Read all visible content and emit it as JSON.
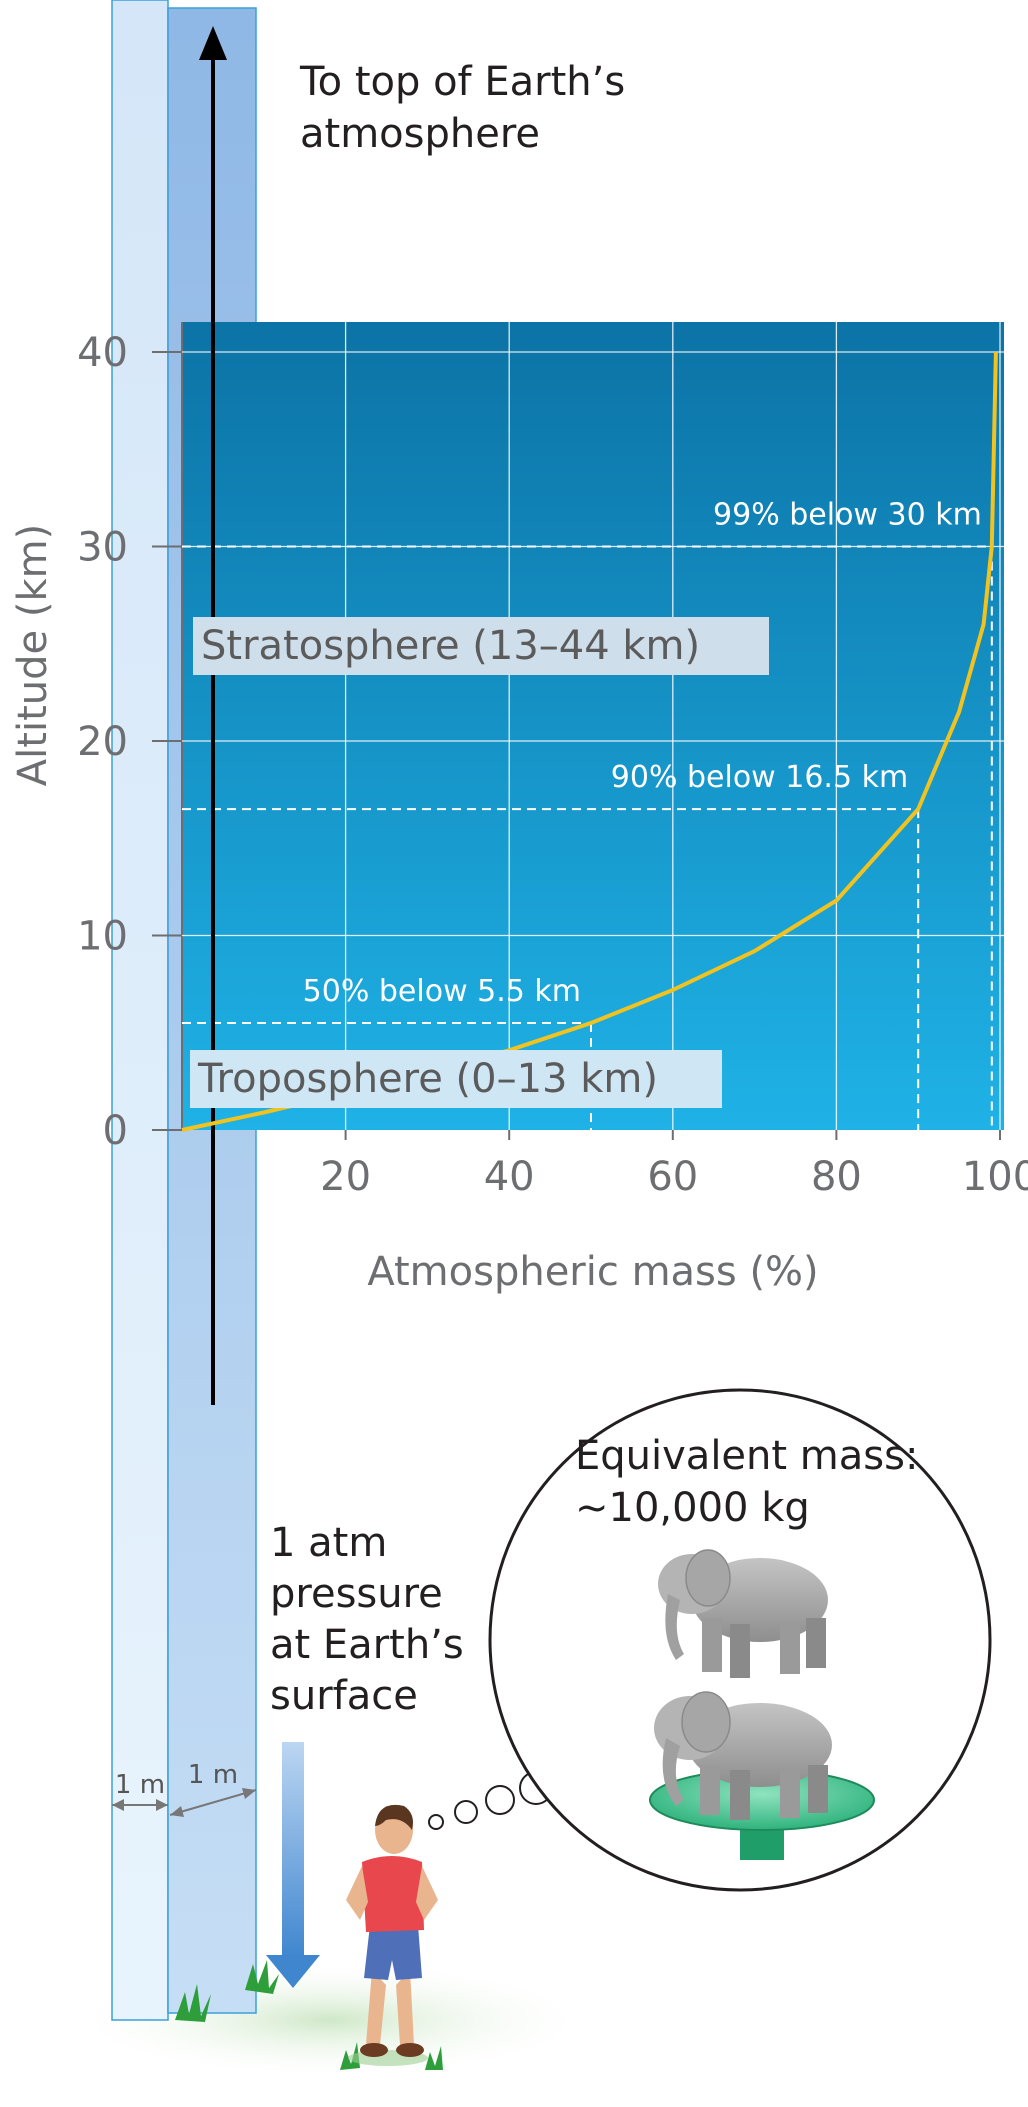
{
  "chart_data": {
    "type": "line",
    "xlabel": "Atmospheric mass (%)",
    "ylabel": "Altitude (km)",
    "xlim": [
      0,
      100
    ],
    "ylim": [
      0,
      40
    ],
    "x_ticks": [
      20,
      40,
      60,
      80,
      100
    ],
    "y_ticks": [
      0,
      10,
      20,
      30,
      40
    ],
    "grid": true,
    "series": [
      {
        "x": [
          0,
          10,
          20,
          30,
          40,
          50,
          60,
          70,
          80,
          90,
          95,
          98,
          99,
          99.5
        ],
        "y": [
          0,
          0.9,
          1.9,
          3.0,
          4.1,
          5.5,
          7.2,
          9.2,
          11.8,
          16.5,
          21.5,
          26.0,
          30.0,
          40.0
        ],
        "color": "#f2c31f"
      }
    ],
    "annotations": [
      {
        "text": "50% below 5.5 km",
        "x": 50,
        "y": 5.5
      },
      {
        "text": "90% below 16.5 km",
        "x": 90,
        "y": 16.5
      },
      {
        "text": "99% below 30 km",
        "x": 99,
        "y": 30
      }
    ],
    "regions": [
      {
        "label": "Stratosphere (13–44 km)",
        "from": 13,
        "to": 44
      },
      {
        "label": "Troposphere (0–13 km)",
        "from": 0,
        "to": 13
      }
    ]
  },
  "captions": {
    "top_arrow": [
      "To top of Earth’s",
      "atmosphere"
    ],
    "pressure": [
      "1 atm",
      "pressure",
      "at Earth’s",
      "surface"
    ],
    "mass": [
      "Equivalent mass:",
      "~10,000 kg"
    ],
    "column_width_1": "1 m",
    "column_width_2": "1 m"
  },
  "colors": {
    "plot_top": "#0c73a6",
    "plot_bottom": "#1fb2e6",
    "curve": "#f2c31f",
    "column_light": "#dcedfb",
    "column_dark": "#a4c8ec",
    "arrow": "#000000",
    "axis_text": "#6d6e71"
  }
}
